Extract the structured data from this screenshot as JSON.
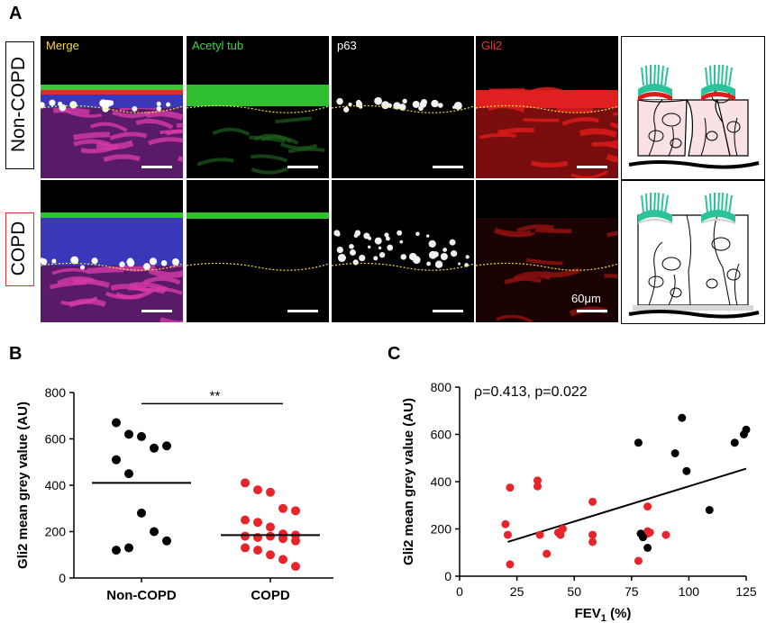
{
  "panel_a": {
    "letter": "A",
    "rows": [
      {
        "label": "Non-COPD",
        "border_color": "#000000"
      },
      {
        "label": "COPD",
        "border_color": "#e03030"
      }
    ],
    "channels": [
      {
        "label": "Merge",
        "color": "#f2d54a"
      },
      {
        "label": "Acetyl tub",
        "color": "#3fd24a"
      },
      {
        "label": "p63",
        "color": "#ffffff"
      },
      {
        "label": "Gli2",
        "color": "#ff2a2a"
      }
    ],
    "scale_label": "60μm"
  },
  "panel_b": {
    "letter": "B"
  },
  "panel_c": {
    "letter": "C"
  },
  "chart_data": [
    {
      "type": "scatter",
      "panel": "B",
      "categories": [
        "Non-COPD",
        "COPD"
      ],
      "ylabel": "Gli2 mean grey value (AU)",
      "xlabel": "",
      "ylim": [
        0,
        800
      ],
      "yticks": [
        0,
        200,
        400,
        600,
        800
      ],
      "significance": "**",
      "series": [
        {
          "category": "Non-COPD",
          "color": "#000000",
          "mean": 410,
          "values": [
            670,
            620,
            610,
            560,
            570,
            510,
            450,
            280,
            200,
            160,
            120,
            130
          ]
        },
        {
          "category": "COPD",
          "color": "#e8242b",
          "mean": 185,
          "values": [
            410,
            380,
            370,
            300,
            290,
            250,
            240,
            220,
            190,
            185,
            180,
            175,
            180,
            170,
            160,
            130,
            120,
            100,
            80,
            50
          ]
        }
      ]
    },
    {
      "type": "scatter",
      "panel": "C",
      "xlabel": "FEV",
      "xlabel_sub": "1",
      "xlabel_suffix": " (%)",
      "ylabel": "Gli2 mean grey value (AU)",
      "xlim": [
        0,
        125
      ],
      "ylim": [
        0,
        800
      ],
      "xticks": [
        0,
        25,
        50,
        75,
        100,
        125
      ],
      "yticks": [
        0,
        200,
        400,
        600,
        800
      ],
      "annotation": "ρ=0.413, p=0.022",
      "fit_line": {
        "x": [
          21,
          125
        ],
        "y": [
          145,
          455
        ]
      },
      "series": [
        {
          "color": "#e8242b",
          "x": [
            20,
            21,
            22,
            22,
            34,
            34,
            35,
            38,
            43,
            45,
            44,
            58,
            58,
            58,
            78,
            82,
            82,
            83,
            82,
            90
          ],
          "y": [
            220,
            175,
            375,
            50,
            405,
            380,
            175,
            95,
            185,
            200,
            175,
            315,
            175,
            145,
            65,
            180,
            190,
            185,
            295,
            175
          ]
        },
        {
          "color": "#000000",
          "x": [
            78,
            79,
            80,
            82,
            94,
            97,
            99,
            109,
            120,
            124,
            125
          ],
          "y": [
            565,
            180,
            165,
            120,
            520,
            670,
            445,
            280,
            565,
            600,
            620
          ]
        }
      ]
    }
  ]
}
